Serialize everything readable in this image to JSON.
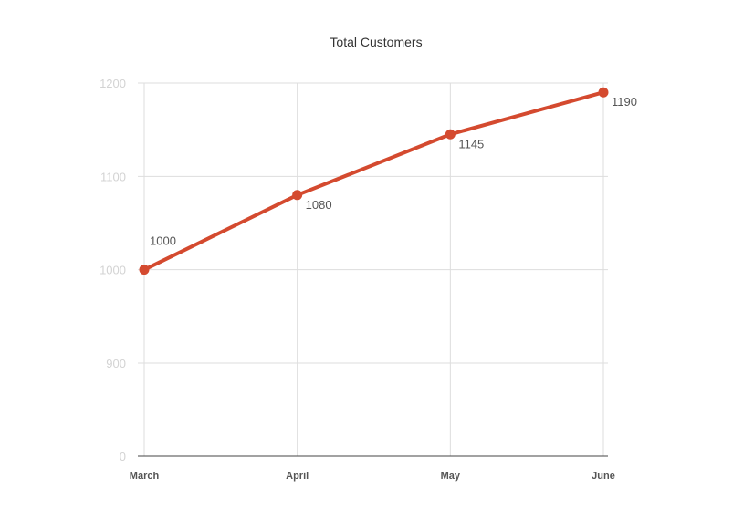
{
  "chart_data": {
    "type": "line",
    "title": "Total Customers",
    "xlabel": "",
    "ylabel": "",
    "categories": [
      "March",
      "April",
      "May",
      "June"
    ],
    "series": [
      {
        "values": [
          1000,
          1080,
          1145,
          1190
        ],
        "color": "#d44a2f"
      }
    ],
    "data_labels": [
      "1000",
      "1080",
      "1145",
      "1190"
    ],
    "y_ticks": [
      0,
      900,
      1000,
      1100,
      1200
    ],
    "y_tick_labels": [
      "0",
      "900",
      "1000",
      "1100",
      "1200"
    ],
    "y_axis_break": "broken axis: 0 then 900 to 1200",
    "grid": true,
    "legend": "none"
  }
}
